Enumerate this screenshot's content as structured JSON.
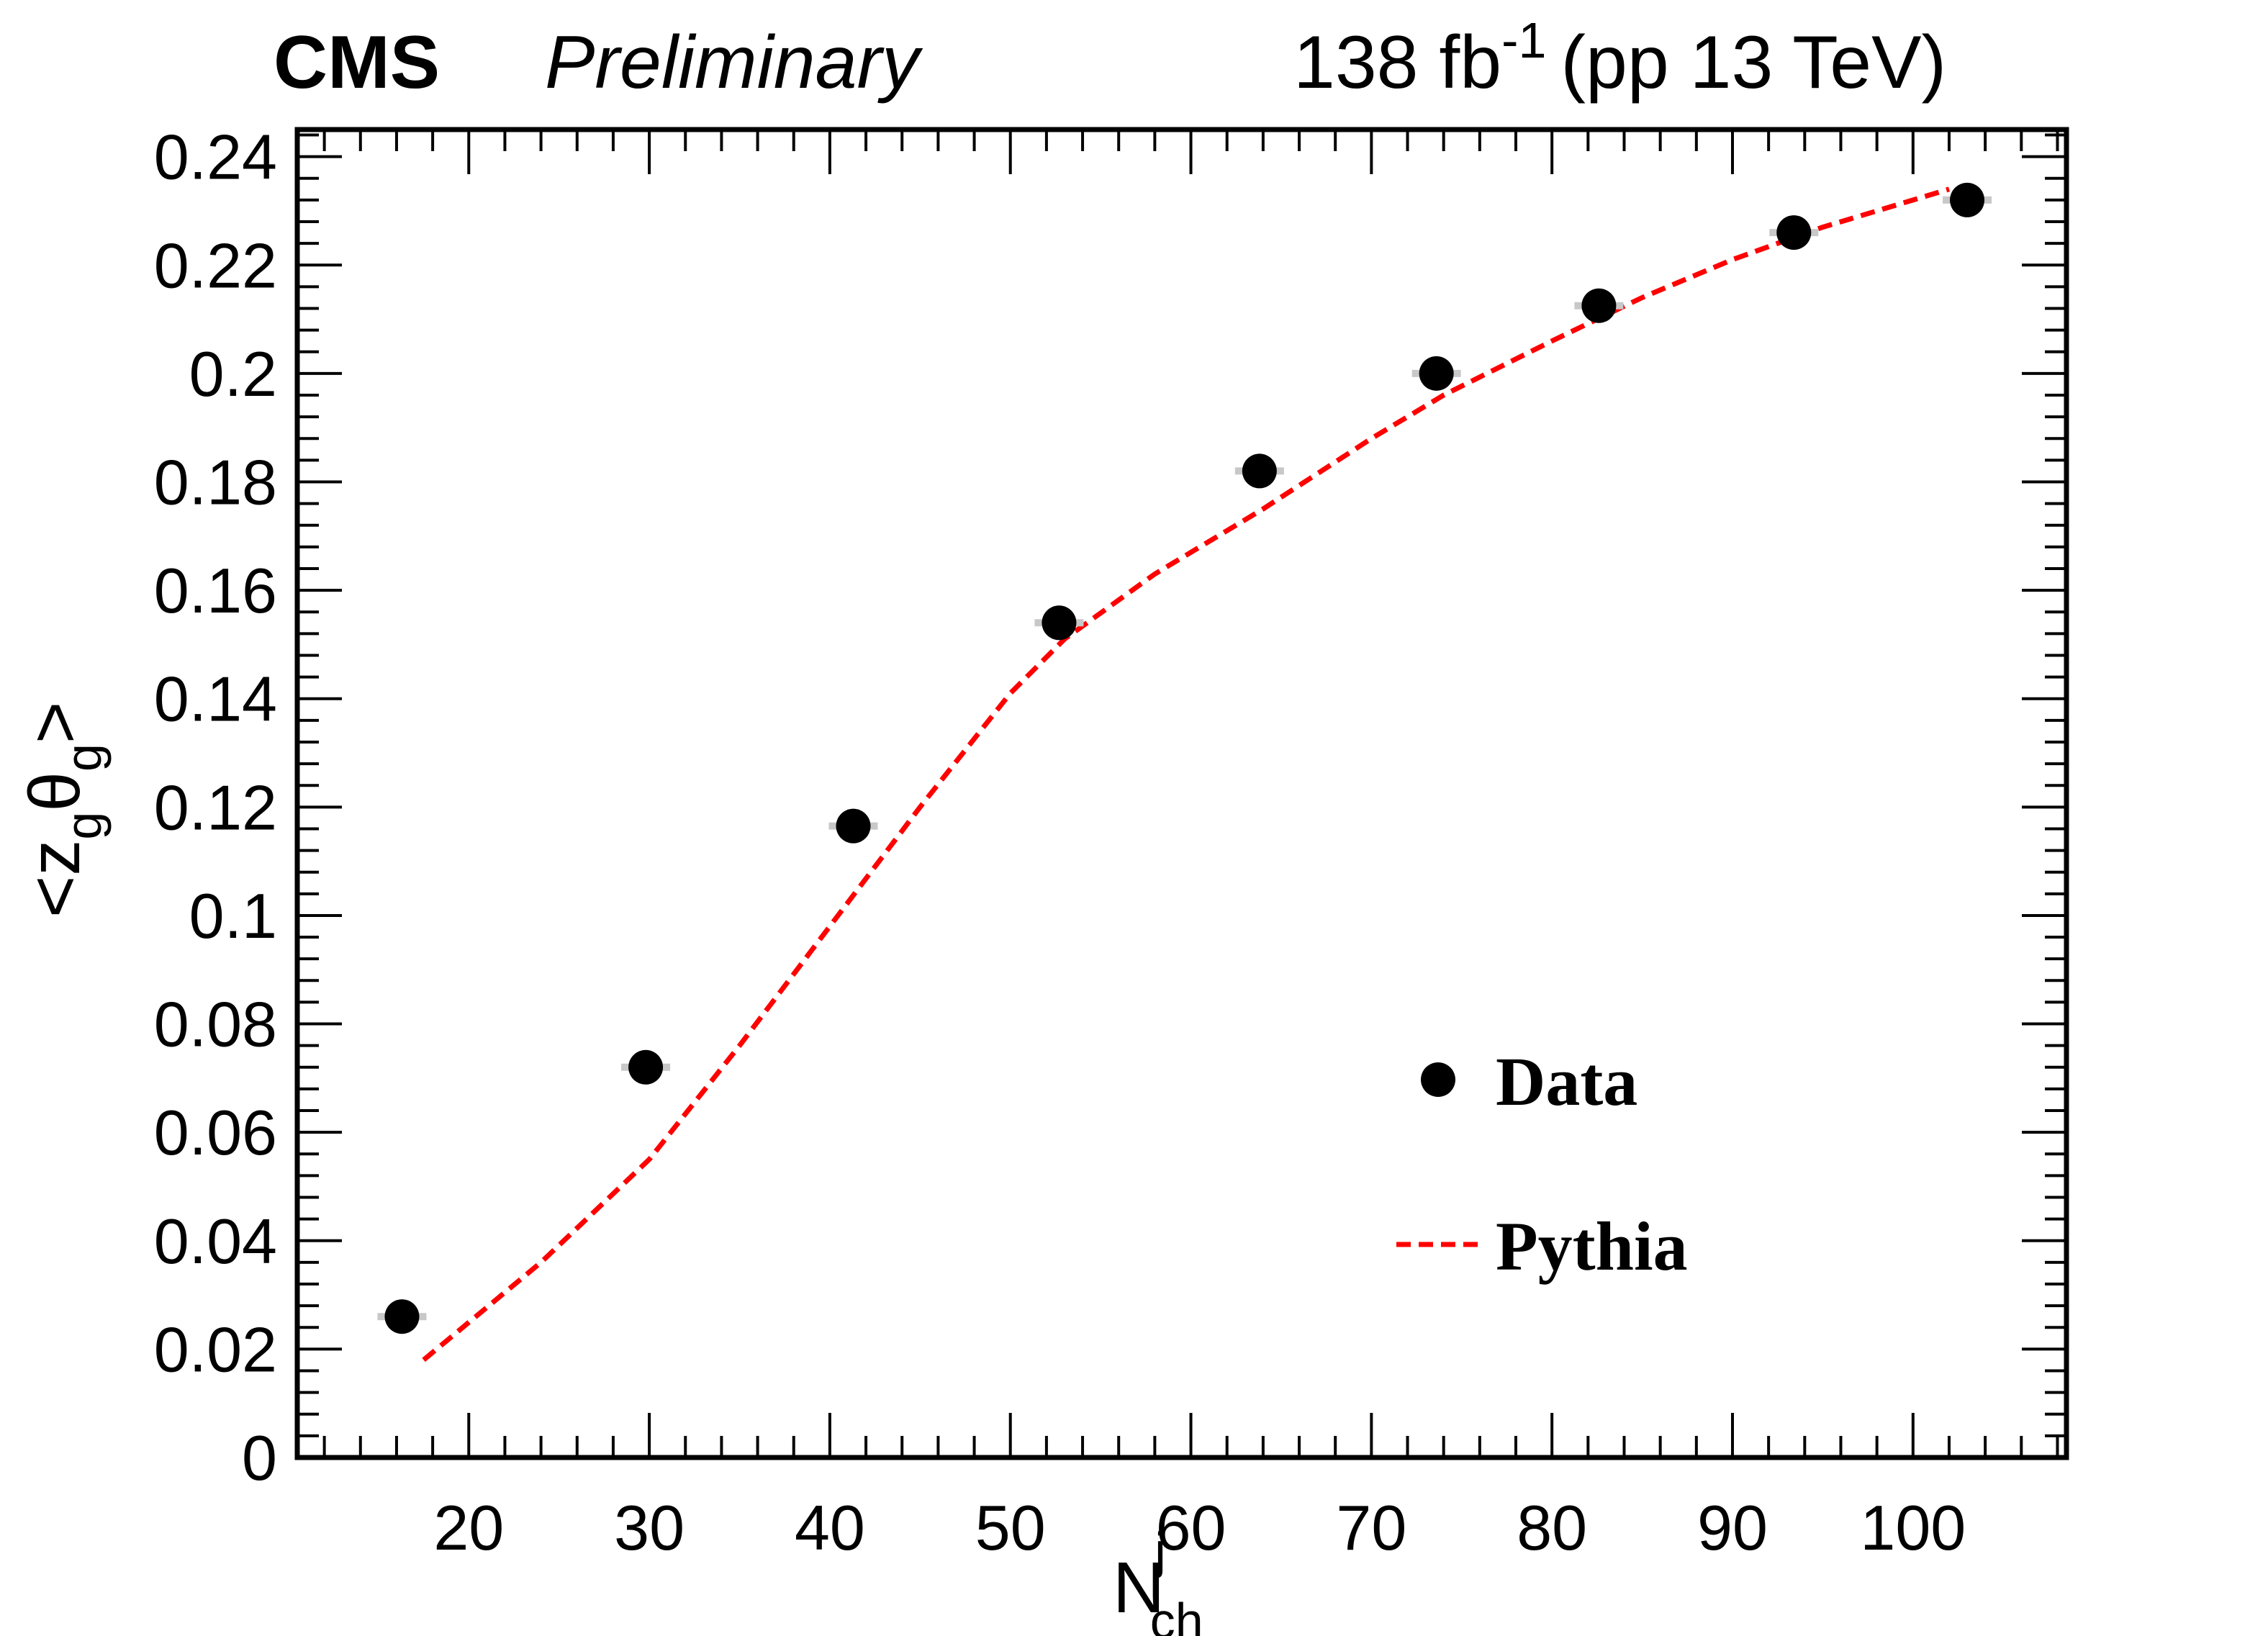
{
  "header": {
    "experiment": "CMS",
    "status": "Preliminary",
    "lumi_value": "138 fb",
    "lumi_exp": "-1",
    "energy": "(pp 13 TeV)"
  },
  "chart_data": {
    "type": "scatter",
    "xlabel": {
      "base": "N",
      "sup": "j",
      "sub": "ch"
    },
    "ylabel": {
      "open": "<z",
      "sub1": "g",
      "theta": "θ",
      "sub2": "g",
      "close": ">"
    },
    "xlim": [
      10.5,
      108.5
    ],
    "ylim": [
      0,
      0.245
    ],
    "x_ticks": [
      20,
      30,
      40,
      50,
      60,
      70,
      80,
      90,
      100
    ],
    "x_tick_labels": [
      "20",
      "30",
      "40",
      "50",
      "60",
      "70",
      "80",
      "90",
      "100"
    ],
    "y_ticks": [
      0,
      0.02,
      0.04,
      0.06,
      0.08,
      0.1,
      0.12,
      0.14,
      0.16,
      0.18,
      0.2,
      0.22,
      0.24
    ],
    "y_tick_labels": [
      "0",
      "0.02",
      "0.04",
      "0.06",
      "0.08",
      "0.1",
      "0.12",
      "0.14",
      "0.16",
      "0.18",
      "0.2",
      "0.22",
      "0.24"
    ],
    "legend": {
      "placement": "bottom-right",
      "entries": [
        {
          "label": "Data",
          "style": "marker",
          "color": "#000000"
        },
        {
          "label": "Pythia",
          "style": "dashed-line",
          "color": "#ff0000"
        }
      ]
    },
    "series": [
      {
        "name": "Data",
        "style": "marker",
        "color": "#000000",
        "x": [
          16.3,
          29.8,
          41.3,
          52.7,
          63.8,
          73.6,
          82.6,
          93.4,
          103.0
        ],
        "y": [
          0.026,
          0.072,
          0.1165,
          0.154,
          0.182,
          0.2,
          0.2125,
          0.226,
          0.232
        ]
      },
      {
        "name": "Pythia",
        "style": "dashed-line",
        "color": "#ff0000",
        "x": [
          17.5,
          24,
          30,
          35,
          40,
          45,
          50,
          53,
          58,
          64,
          70,
          74,
          80,
          85,
          90,
          95,
          100,
          102
        ],
        "y": [
          0.018,
          0.036,
          0.055,
          0.076,
          0.098,
          0.12,
          0.141,
          0.151,
          0.163,
          0.175,
          0.188,
          0.196,
          0.206,
          0.214,
          0.221,
          0.227,
          0.232,
          0.234
        ]
      }
    ]
  }
}
